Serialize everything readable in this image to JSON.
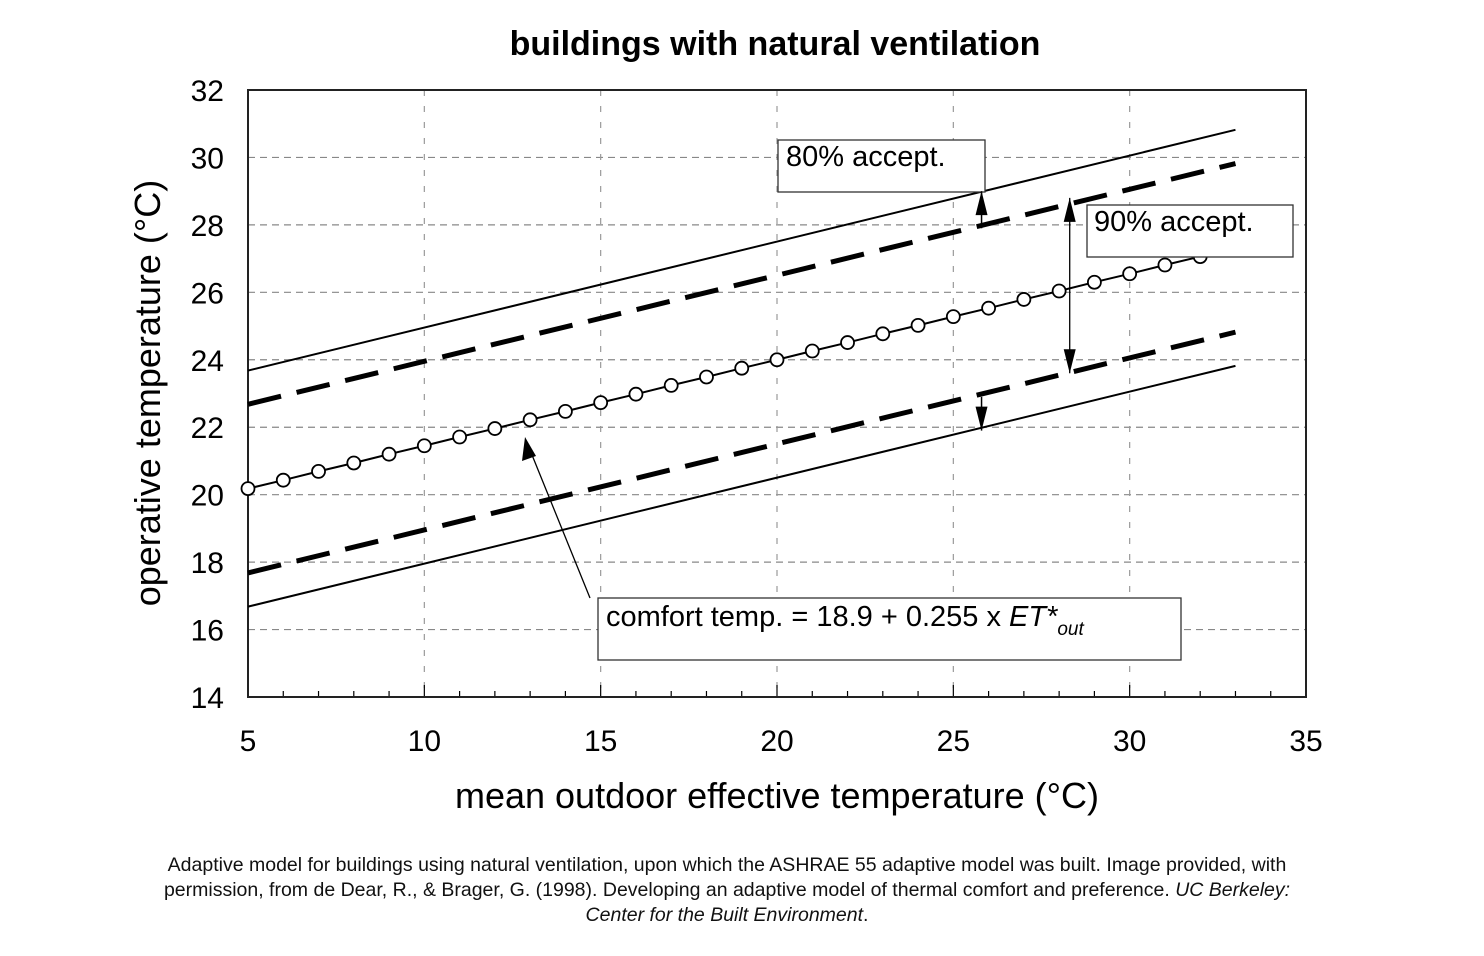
{
  "chart_data": {
    "type": "line",
    "title": "buildings with natural ventilation",
    "xlabel": "mean outdoor effective temperature (°C)",
    "ylabel": "operative temperature (°C)",
    "xlim": [
      5,
      35
    ],
    "ylim": [
      14,
      32
    ],
    "xticks": [
      5,
      10,
      15,
      20,
      25,
      30,
      35
    ],
    "yticks": [
      14,
      16,
      18,
      20,
      22,
      24,
      26,
      28,
      30,
      32
    ],
    "grid": true,
    "series": [
      {
        "style": "solid-with-circles",
        "x": [
          5,
          6,
          7,
          8,
          9,
          10,
          11,
          12,
          13,
          14,
          15,
          16,
          17,
          18,
          19,
          20,
          21,
          22,
          23,
          24,
          25,
          26,
          27,
          28,
          29,
          30,
          31,
          32
        ],
        "y": [
          20.18,
          20.43,
          20.69,
          20.94,
          21.2,
          21.45,
          21.71,
          21.96,
          22.22,
          22.47,
          22.73,
          22.98,
          23.24,
          23.49,
          23.75,
          24.0,
          24.26,
          24.51,
          24.77,
          25.02,
          25.28,
          25.53,
          25.79,
          26.04,
          26.3,
          26.55,
          26.81,
          27.06
        ]
      },
      {
        "style": "solid",
        "x": [
          5,
          33
        ],
        "y": [
          23.68,
          30.82
        ]
      },
      {
        "style": "dashed",
        "x": [
          5,
          33
        ],
        "y": [
          22.68,
          29.82
        ]
      },
      {
        "style": "dashed",
        "x": [
          5,
          33
        ],
        "y": [
          17.68,
          24.82
        ]
      },
      {
        "style": "solid",
        "x": [
          5,
          33
        ],
        "y": [
          16.68,
          23.82
        ]
      }
    ],
    "annotations": [
      {
        "text": "80% accept."
      },
      {
        "text": "90% accept."
      },
      {
        "text": "comfort temp. = 18.9 + 0.255 x ",
        "italic": "ET*",
        "subscript": "out"
      }
    ]
  },
  "caption": {
    "line1": "Adaptive model for buildings using natural ventilation, upon which the ASHRAE 55 adaptive model was built. Image provided, with",
    "line2": "permission, from de Dear, R., & Brager, G. (1998). Developing an adaptive model of thermal comfort and preference. ",
    "line2_italic": "UC Berkeley:",
    "line3_italic": "Center for the Built Environment",
    "line3_end": "."
  }
}
